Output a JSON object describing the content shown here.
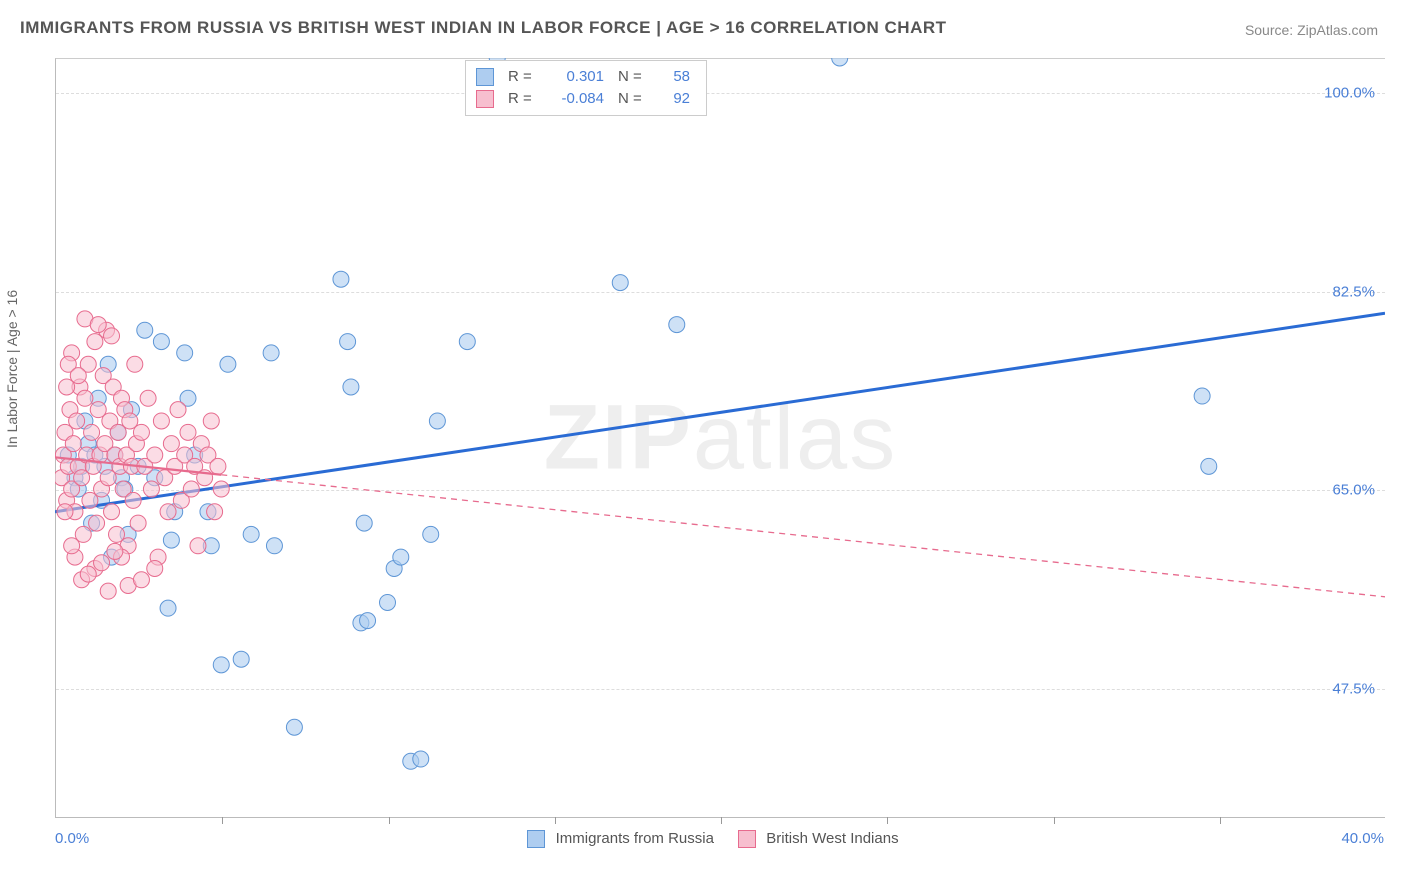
{
  "title": "IMMIGRANTS FROM RUSSIA VS BRITISH WEST INDIAN IN LABOR FORCE | AGE > 16 CORRELATION CHART",
  "source": "Source: ZipAtlas.com",
  "watermark": "ZIPatlas",
  "ylabel": "In Labor Force | Age > 16",
  "xaxis": {
    "min": 0.0,
    "max": 40.0,
    "tick_step": 5.0,
    "label_left": "0.0%",
    "label_right": "40.0%"
  },
  "yaxis": {
    "min": 36.0,
    "max": 103.0,
    "ticks": [
      47.5,
      65.0,
      82.5,
      100.0
    ],
    "labels": [
      "47.5%",
      "65.0%",
      "82.5%",
      "100.0%"
    ]
  },
  "series": [
    {
      "name": "Immigrants from Russia",
      "data_name": "series-russia",
      "fill": "#aecdf0",
      "stroke": "#5e96d6",
      "fill_opacity": 0.6,
      "marker_r": 8,
      "trend": {
        "color": "#2a6bd4",
        "width": 3,
        "dash": "none",
        "y_at_xmin": 63.0,
        "y_at_xmax": 80.5
      },
      "R": "0.301",
      "N": "58",
      "points": [
        [
          0.4,
          68
        ],
        [
          0.6,
          66
        ],
        [
          0.7,
          65
        ],
        [
          0.8,
          67
        ],
        [
          0.9,
          71
        ],
        [
          1.0,
          69
        ],
        [
          1.1,
          62
        ],
        [
          1.2,
          68
        ],
        [
          1.3,
          73
        ],
        [
          1.4,
          64
        ],
        [
          1.5,
          67
        ],
        [
          1.6,
          76
        ],
        [
          1.7,
          59
        ],
        [
          1.8,
          68
        ],
        [
          1.9,
          70
        ],
        [
          2.0,
          66
        ],
        [
          2.1,
          65
        ],
        [
          2.2,
          61
        ],
        [
          2.3,
          72
        ],
        [
          2.5,
          67
        ],
        [
          3.0,
          66
        ],
        [
          3.2,
          78
        ],
        [
          3.4,
          54.5
        ],
        [
          3.5,
          60.5
        ],
        [
          3.6,
          63
        ],
        [
          3.9,
          77
        ],
        [
          4.0,
          73
        ],
        [
          4.2,
          68
        ],
        [
          4.6,
          63
        ],
        [
          4.7,
          60
        ],
        [
          5.0,
          49.5
        ],
        [
          5.2,
          76
        ],
        [
          5.6,
          50
        ],
        [
          2.7,
          79
        ],
        [
          5.9,
          61
        ],
        [
          6.5,
          77
        ],
        [
          6.6,
          60
        ],
        [
          7.2,
          44
        ],
        [
          8.6,
          83.5
        ],
        [
          8.8,
          78
        ],
        [
          8.9,
          74
        ],
        [
          9.2,
          53.2
        ],
        [
          9.3,
          62
        ],
        [
          9.4,
          53.4
        ],
        [
          10.0,
          55
        ],
        [
          10.2,
          58
        ],
        [
          10.4,
          59
        ],
        [
          10.7,
          41
        ],
        [
          11.0,
          41.2
        ],
        [
          11.3,
          61
        ],
        [
          11.5,
          71
        ],
        [
          12.4,
          78
        ],
        [
          13.3,
          103
        ],
        [
          17.0,
          83.2
        ],
        [
          18.7,
          79.5
        ],
        [
          23.6,
          103
        ],
        [
          34.5,
          73.2
        ],
        [
          34.7,
          67
        ]
      ]
    },
    {
      "name": "British West Indians",
      "data_name": "series-british-west-indians",
      "fill": "#f7bfcf",
      "stroke": "#e76b8e",
      "fill_opacity": 0.55,
      "marker_r": 8,
      "trend": {
        "color": "#e76b8e",
        "width": 1.3,
        "dash": "6,5",
        "y_at_xmin": 67.8,
        "y_at_xmax": 55.5,
        "solid_until_x": 5.0
      },
      "R": "-0.084",
      "N": "92",
      "points": [
        [
          0.2,
          66
        ],
        [
          0.25,
          68
        ],
        [
          0.3,
          70
        ],
        [
          0.35,
          64
        ],
        [
          0.4,
          67
        ],
        [
          0.45,
          72
        ],
        [
          0.5,
          65
        ],
        [
          0.55,
          69
        ],
        [
          0.6,
          63
        ],
        [
          0.65,
          71
        ],
        [
          0.7,
          67
        ],
        [
          0.75,
          74
        ],
        [
          0.8,
          66
        ],
        [
          0.85,
          61
        ],
        [
          0.9,
          73
        ],
        [
          0.95,
          68
        ],
        [
          1.0,
          76
        ],
        [
          1.05,
          64
        ],
        [
          1.1,
          70
        ],
        [
          1.15,
          67
        ],
        [
          1.2,
          78
        ],
        [
          1.25,
          62
        ],
        [
          1.3,
          72
        ],
        [
          1.35,
          68
        ],
        [
          1.4,
          65
        ],
        [
          1.45,
          75
        ],
        [
          1.5,
          69
        ],
        [
          1.55,
          79
        ],
        [
          1.6,
          66
        ],
        [
          1.65,
          71
        ],
        [
          1.7,
          63
        ],
        [
          1.75,
          74
        ],
        [
          1.8,
          68
        ],
        [
          1.85,
          61
        ],
        [
          1.9,
          70
        ],
        [
          1.95,
          67
        ],
        [
          2.0,
          73
        ],
        [
          2.05,
          65
        ],
        [
          2.1,
          72
        ],
        [
          2.15,
          68
        ],
        [
          2.2,
          60
        ],
        [
          2.25,
          71
        ],
        [
          2.3,
          67
        ],
        [
          2.35,
          64
        ],
        [
          2.4,
          76
        ],
        [
          2.45,
          69
        ],
        [
          2.5,
          62
        ],
        [
          2.6,
          70
        ],
        [
          2.7,
          67
        ],
        [
          2.8,
          73
        ],
        [
          2.9,
          65
        ],
        [
          3.0,
          68
        ],
        [
          3.1,
          59
        ],
        [
          3.2,
          71
        ],
        [
          3.3,
          66
        ],
        [
          3.4,
          63
        ],
        [
          3.5,
          69
        ],
        [
          3.6,
          67
        ],
        [
          3.7,
          72
        ],
        [
          3.8,
          64
        ],
        [
          3.9,
          68
        ],
        [
          4.0,
          70
        ],
        [
          4.1,
          65
        ],
        [
          4.2,
          67
        ],
        [
          4.3,
          60
        ],
        [
          4.4,
          69
        ],
        [
          4.5,
          66
        ],
        [
          4.6,
          68
        ],
        [
          4.7,
          71
        ],
        [
          4.8,
          63
        ],
        [
          4.9,
          67
        ],
        [
          5.0,
          65
        ],
        [
          0.8,
          57
        ],
        [
          1.2,
          58
        ],
        [
          1.6,
          56
        ],
        [
          2.0,
          59
        ],
        [
          0.9,
          80
        ],
        [
          1.3,
          79.5
        ],
        [
          1.7,
          78.5
        ],
        [
          0.5,
          77
        ],
        [
          0.6,
          59
        ],
        [
          0.4,
          76
        ],
        [
          1.0,
          57.5
        ],
        [
          1.4,
          58.5
        ],
        [
          1.8,
          59.5
        ],
        [
          2.2,
          56.5
        ],
        [
          2.6,
          57
        ],
        [
          3.0,
          58
        ],
        [
          0.3,
          63
        ],
        [
          0.35,
          74
        ],
        [
          0.5,
          60
        ],
        [
          0.7,
          75
        ]
      ]
    }
  ],
  "colors": {
    "grid": "#dddddd",
    "axis": "#bbbbbb",
    "tick_label": "#4a7fd6",
    "background": "#ffffff"
  },
  "legend_top_labels": {
    "R": "R =",
    "N": "N ="
  },
  "legend_bottom": [
    {
      "label": "Immigrants from Russia",
      "fill": "#aecdf0",
      "stroke": "#5e96d6"
    },
    {
      "label": "British West Indians",
      "fill": "#f7bfcf",
      "stroke": "#e76b8e"
    }
  ]
}
